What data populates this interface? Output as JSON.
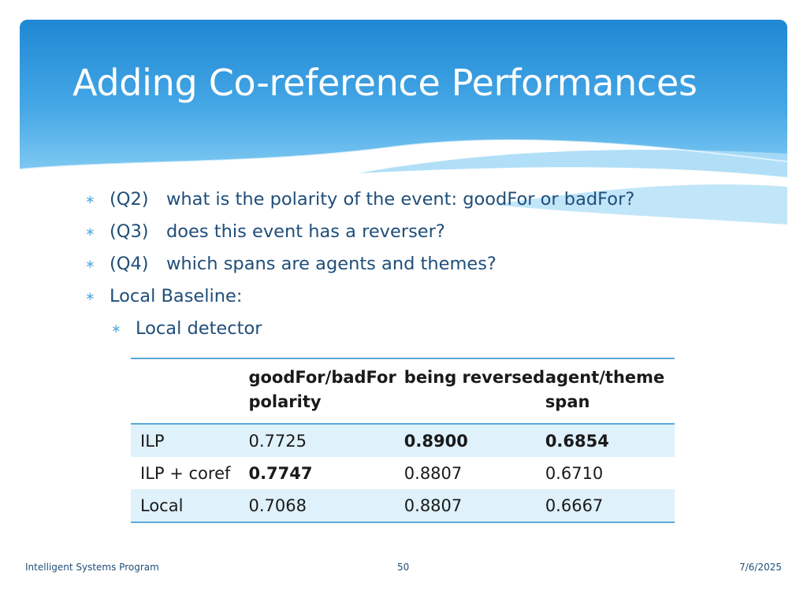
{
  "slide": {
    "title": "Adding Co-reference Performances",
    "accent_colors": {
      "header_blue": "#2e8fd6",
      "light_blue": "#5aa9d9",
      "text_navy": "#1f4e79",
      "row_shade": "#dff1fb"
    }
  },
  "bullets": [
    {
      "q": "(Q2)",
      "text": "what is the polarity of the event: goodFor or badFor?"
    },
    {
      "q": "(Q3)",
      "text": "does this event has a reverser?"
    },
    {
      "q": "(Q4)",
      "text": "which spans are agents and themes?"
    },
    {
      "q": "",
      "text": "Local Baseline:"
    }
  ],
  "sub_bullets": [
    {
      "text": "Local detector"
    }
  ],
  "table": {
    "headers": [
      "",
      "goodFor/badFor polarity",
      "being reversed",
      "agent/theme span"
    ],
    "rows": [
      {
        "cells": [
          "ILP",
          "0.7725",
          "0.8900",
          "0.6854"
        ],
        "bold": [
          false,
          false,
          true,
          true
        ]
      },
      {
        "cells": [
          "ILP + coref",
          "0.7747",
          "0.8807",
          "0.6710"
        ],
        "bold": [
          false,
          true,
          false,
          false
        ]
      },
      {
        "cells": [
          "Local",
          "0.7068",
          "0.8807",
          "0.6667"
        ],
        "bold": [
          false,
          false,
          false,
          false
        ]
      }
    ]
  },
  "footer": {
    "left": "Intelligent Systems Program",
    "center": "50",
    "right": "7/6/2025"
  }
}
